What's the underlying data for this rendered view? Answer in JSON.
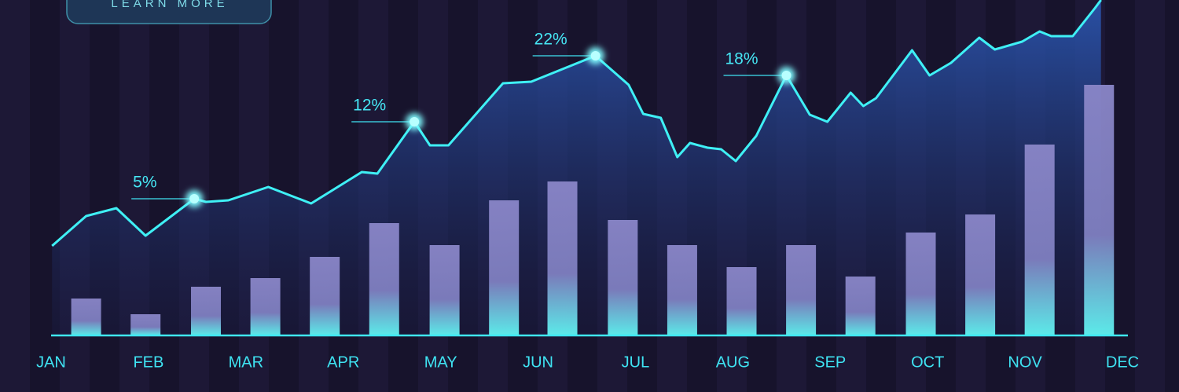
{
  "button": {
    "text": "LEARN MORE"
  },
  "chart_data": {
    "type": "combo",
    "xlim": [
      0,
      11
    ],
    "ylim": [
      0,
      427
    ],
    "xticks": [
      {
        "value": 0,
        "label": "JAN"
      },
      {
        "value": 1,
        "label": "FEB"
      },
      {
        "value": 2,
        "label": "MAR"
      },
      {
        "value": 3,
        "label": "APR"
      },
      {
        "value": 4,
        "label": "MAY"
      },
      {
        "value": 5,
        "label": "JUN"
      },
      {
        "value": 6,
        "label": "JUL"
      },
      {
        "value": 7,
        "label": "AUG"
      },
      {
        "value": 8,
        "label": "SEP"
      },
      {
        "value": 9,
        "label": "OCT"
      },
      {
        "value": 10,
        "label": "NOV"
      },
      {
        "value": 11,
        "label": "DEC"
      }
    ],
    "bars": {
      "color": "#8a86c8",
      "x": [
        0.36,
        0.97,
        1.59,
        2.2,
        2.81,
        3.42,
        4.04,
        4.65,
        5.25,
        5.87,
        6.48,
        7.09,
        7.7,
        8.31,
        8.93,
        9.54,
        10.15,
        10.76
      ],
      "values": [
        47,
        27,
        62,
        73,
        100,
        143,
        115,
        172,
        196,
        147,
        115,
        87,
        115,
        75,
        131,
        154,
        243,
        319
      ]
    },
    "line": {
      "color": "#3ff0f5",
      "x": [
        0.01,
        0.36,
        0.67,
        0.97,
        1.47,
        1.59,
        1.82,
        2.23,
        2.67,
        3.19,
        3.35,
        3.73,
        3.89,
        4.08,
        4.64,
        4.93,
        5.59,
        5.93,
        6.08,
        6.26,
        6.43,
        6.56,
        6.74,
        6.88,
        7.03,
        7.24,
        7.55,
        7.79,
        7.97,
        8.21,
        8.34,
        8.47,
        8.84,
        9.02,
        9.24,
        9.53,
        9.69,
        9.97,
        10.15,
        10.27,
        10.49,
        10.72,
        10.78
      ],
      "values": [
        114,
        152,
        162,
        127,
        174,
        170,
        172,
        189,
        168,
        208,
        206,
        272,
        242,
        242,
        321,
        323,
        356,
        319,
        282,
        277,
        227,
        245,
        239,
        237,
        222,
        254,
        331,
        281,
        272,
        309,
        292,
        302,
        363,
        331,
        347,
        379,
        364,
        374,
        387,
        381,
        381,
        417,
        427
      ]
    },
    "annotations": [
      {
        "text": "5%",
        "x": 1.47,
        "y": 174
      },
      {
        "text": "12%",
        "x": 3.73,
        "y": 272
      },
      {
        "text": "22%",
        "x": 5.59,
        "y": 356
      },
      {
        "text": "18%",
        "x": 7.55,
        "y": 331
      }
    ]
  }
}
